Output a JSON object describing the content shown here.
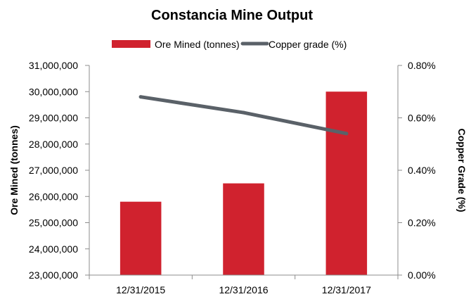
{
  "chart_data": {
    "type": "bar",
    "title": "Constancia Mine Output",
    "categories": [
      "12/31/2015",
      "12/31/2016",
      "12/31/2017"
    ],
    "series": [
      {
        "name": "Ore Mined (tonnes)",
        "type": "bar",
        "axis": "left",
        "color": "#d0222e",
        "values": [
          25800000,
          26500000,
          30000000
        ]
      },
      {
        "name": "Copper grade (%)",
        "type": "line",
        "axis": "right",
        "color": "#5a6168",
        "values": [
          0.68,
          0.62,
          0.54
        ]
      }
    ],
    "left_axis": {
      "label": "Ore Mined (tonnes)",
      "ylim": [
        23000000,
        31000000
      ],
      "ticks": [
        23000000,
        24000000,
        25000000,
        26000000,
        27000000,
        28000000,
        29000000,
        30000000,
        31000000
      ],
      "tick_labels": [
        "23,000,000",
        "24,000,000",
        "25,000,000",
        "26,000,000",
        "27,000,000",
        "28,000,000",
        "29,000,000",
        "30,000,000",
        "31,000,000"
      ]
    },
    "right_axis": {
      "label": "Copper Grade (%)",
      "ylim": [
        0,
        0.8
      ],
      "ticks": [
        0,
        0.2,
        0.4,
        0.6,
        0.8
      ],
      "tick_labels": [
        "0.00%",
        "0.20%",
        "0.40%",
        "0.60%",
        "0.80%"
      ]
    },
    "legend_position": "top-center",
    "grid": false
  }
}
